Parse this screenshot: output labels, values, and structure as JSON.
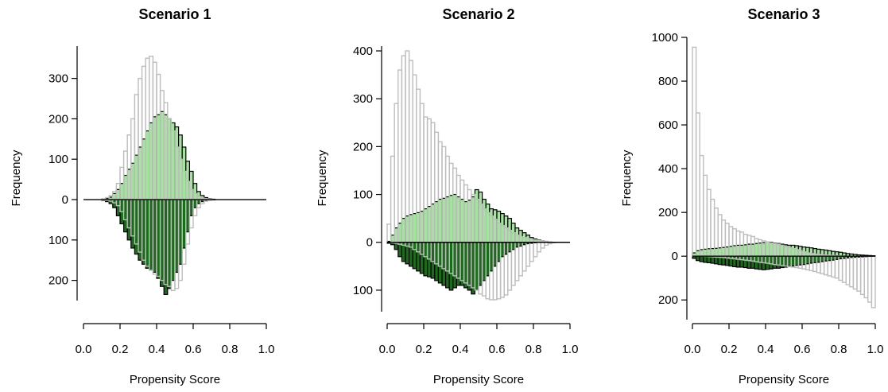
{
  "chart_data": [
    {
      "type": "bar",
      "title": "Scenario 1",
      "xlabel": "Propensity Score",
      "ylabel": "Frequency",
      "bin_width": 0.02,
      "x_range": [
        0.0,
        1.0
      ],
      "xlim": [
        0.0,
        1.0
      ],
      "ylim": [
        -250,
        380
      ],
      "x_ticks": [
        "0.0",
        "0.2",
        "0.4",
        "0.6",
        "0.8",
        "1.0"
      ],
      "y_ticks": [
        {
          "value": 300,
          "label": "300"
        },
        {
          "value": 200,
          "label": "200"
        },
        {
          "value": 100,
          "label": "100"
        },
        {
          "value": 0,
          "label": "0"
        },
        {
          "value": -100,
          "label": "100"
        },
        {
          "value": -200,
          "label": "200"
        }
      ],
      "series": [
        {
          "role": "outline-upper",
          "color": "#bdbdbd",
          "values": [
            0,
            0,
            0,
            0,
            0,
            2,
            5,
            10,
            20,
            40,
            80,
            120,
            160,
            200,
            260,
            300,
            330,
            350,
            355,
            340,
            310,
            270,
            240,
            200,
            170,
            130,
            100,
            70,
            45,
            25,
            15,
            8,
            4,
            2,
            1,
            0,
            0,
            0,
            0,
            0,
            0,
            0,
            0,
            0,
            0,
            0,
            0,
            0,
            0,
            0
          ]
        },
        {
          "role": "treated",
          "color": "#a6e3a1",
          "values": [
            0,
            0,
            0,
            0,
            0,
            1,
            3,
            6,
            15,
            25,
            40,
            60,
            75,
            90,
            110,
            130,
            150,
            170,
            190,
            205,
            210,
            218,
            210,
            200,
            190,
            180,
            160,
            130,
            95,
            70,
            40,
            20,
            10,
            5,
            2,
            1,
            0,
            0,
            0,
            0,
            0,
            0,
            0,
            0,
            0,
            0,
            0,
            0,
            0,
            0
          ]
        },
        {
          "role": "control",
          "color": "#1a6b1a",
          "values": [
            0,
            0,
            0,
            0,
            0,
            2,
            5,
            10,
            20,
            40,
            60,
            80,
            100,
            120,
            135,
            150,
            160,
            170,
            175,
            180,
            195,
            215,
            235,
            220,
            200,
            180,
            160,
            120,
            80,
            40,
            20,
            10,
            5,
            2,
            1,
            0,
            0,
            0,
            0,
            0,
            0,
            0,
            0,
            0,
            0,
            0,
            0,
            0,
            0,
            0
          ]
        },
        {
          "role": "outline-lower",
          "color": "#bdbdbd",
          "values": [
            0,
            0,
            0,
            0,
            0,
            1,
            2,
            4,
            8,
            15,
            30,
            50,
            70,
            90,
            110,
            130,
            150,
            165,
            175,
            185,
            190,
            200,
            210,
            215,
            225,
            220,
            200,
            160,
            110,
            70,
            40,
            20,
            10,
            4,
            2,
            1,
            0,
            0,
            0,
            0,
            0,
            0,
            0,
            0,
            0,
            0,
            0,
            0,
            0,
            0
          ]
        }
      ]
    },
    {
      "type": "bar",
      "title": "Scenario 2",
      "xlabel": "Propensity Score",
      "ylabel": "Frequency",
      "bin_width": 0.02,
      "x_range": [
        0.0,
        1.0
      ],
      "xlim": [
        0.0,
        1.0
      ],
      "ylim": [
        -145,
        410
      ],
      "x_ticks": [
        "0.0",
        "0.2",
        "0.4",
        "0.6",
        "0.8",
        "1.0"
      ],
      "y_ticks": [
        {
          "value": 400,
          "label": "400"
        },
        {
          "value": 300,
          "label": "300"
        },
        {
          "value": 200,
          "label": "200"
        },
        {
          "value": 100,
          "label": "100"
        },
        {
          "value": 0,
          "label": "0"
        },
        {
          "value": -100,
          "label": "100"
        }
      ],
      "series": [
        {
          "role": "outline-upper",
          "color": "#bdbdbd",
          "values": [
            38,
            180,
            290,
            360,
            390,
            400,
            380,
            350,
            320,
            290,
            262,
            258,
            250,
            230,
            210,
            200,
            180,
            165,
            155,
            140,
            130,
            120,
            110,
            100,
            90,
            80,
            70,
            62,
            55,
            48,
            40,
            35,
            30,
            25,
            20,
            15,
            12,
            10,
            8,
            6,
            5,
            4,
            3,
            2,
            1,
            0,
            0,
            0,
            0,
            0
          ]
        },
        {
          "role": "treated",
          "color": "#a6e3a1",
          "values": [
            2,
            15,
            30,
            40,
            50,
            55,
            58,
            60,
            62,
            65,
            70,
            75,
            80,
            85,
            90,
            92,
            95,
            98,
            100,
            95,
            90,
            85,
            88,
            95,
            110,
            105,
            90,
            80,
            70,
            68,
            65,
            60,
            55,
            50,
            40,
            30,
            25,
            20,
            15,
            10,
            7,
            5,
            3,
            2,
            1,
            0,
            0,
            0,
            0,
            0
          ]
        },
        {
          "role": "control",
          "color": "#1a6b1a",
          "values": [
            2,
            5,
            15,
            30,
            40,
            45,
            50,
            55,
            60,
            65,
            70,
            72,
            75,
            80,
            85,
            90,
            95,
            100,
            95,
            90,
            90,
            95,
            100,
            108,
            100,
            90,
            80,
            70,
            60,
            50,
            40,
            30,
            25,
            20,
            15,
            10,
            8,
            5,
            3,
            2,
            1,
            0,
            0,
            0,
            0,
            0,
            0,
            0,
            0,
            0
          ]
        },
        {
          "role": "outline-lower",
          "color": "#bdbdbd",
          "values": [
            0,
            1,
            2,
            4,
            6,
            8,
            10,
            15,
            20,
            25,
            30,
            35,
            40,
            45,
            50,
            55,
            60,
            65,
            70,
            75,
            80,
            85,
            90,
            95,
            100,
            108,
            112,
            118,
            120,
            120,
            118,
            115,
            110,
            100,
            90,
            80,
            70,
            60,
            50,
            40,
            30,
            20,
            12,
            6,
            3,
            1,
            0,
            0,
            0,
            0
          ]
        }
      ]
    },
    {
      "type": "bar",
      "title": "Scenario 3",
      "xlabel": "Propensity Score",
      "ylabel": "Frequency",
      "bin_width": 0.02,
      "x_range": [
        0.0,
        1.0
      ],
      "xlim": [
        0.0,
        1.0
      ],
      "ylim": [
        -290,
        1000
      ],
      "x_ticks": [
        "0.0",
        "0.2",
        "0.4",
        "0.6",
        "0.8",
        "1.0"
      ],
      "y_ticks": [
        {
          "value": 1000,
          "label": "1000"
        },
        {
          "value": 800,
          "label": "800"
        },
        {
          "value": 600,
          "label": "600"
        },
        {
          "value": 400,
          "label": "400"
        },
        {
          "value": 200,
          "label": "200"
        },
        {
          "value": 0,
          "label": "0"
        },
        {
          "value": -200,
          "label": "200"
        }
      ],
      "series": [
        {
          "role": "outline-upper",
          "color": "#bdbdbd",
          "values": [
            955,
            655,
            460,
            370,
            305,
            260,
            220,
            190,
            165,
            150,
            135,
            125,
            115,
            110,
            100,
            95,
            90,
            80,
            75,
            70,
            65,
            60,
            58,
            55,
            50,
            45,
            40,
            35,
            30,
            25,
            20,
            15,
            12,
            10,
            8,
            6,
            5,
            4,
            3,
            2,
            1,
            0,
            0,
            0,
            0,
            0,
            0,
            0,
            0,
            0
          ]
        },
        {
          "role": "treated",
          "color": "#a6e3a1",
          "values": [
            15,
            25,
            30,
            32,
            34,
            35,
            36,
            38,
            40,
            42,
            45,
            48,
            50,
            50,
            52,
            55,
            55,
            58,
            60,
            62,
            65,
            63,
            60,
            58,
            55,
            52,
            50,
            50,
            48,
            45,
            42,
            40,
            38,
            35,
            32,
            30,
            28,
            25,
            22,
            20,
            18,
            15,
            12,
            10,
            8,
            6,
            5,
            4,
            3,
            2
          ]
        },
        {
          "role": "control",
          "color": "#1a6b1a",
          "values": [
            10,
            20,
            25,
            28,
            30,
            32,
            35,
            38,
            40,
            42,
            45,
            48,
            50,
            50,
            52,
            55,
            55,
            58,
            60,
            62,
            60,
            58,
            55,
            55,
            52,
            50,
            48,
            45,
            42,
            40,
            38,
            35,
            32,
            30,
            28,
            25,
            22,
            20,
            18,
            15,
            12,
            10,
            8,
            6,
            5,
            4,
            3,
            2,
            1,
            0
          ]
        },
        {
          "role": "outline-lower",
          "color": "#bdbdbd",
          "values": [
            0,
            0,
            0,
            1,
            2,
            3,
            4,
            5,
            6,
            8,
            10,
            12,
            14,
            16,
            18,
            20,
            22,
            25,
            28,
            30,
            32,
            35,
            38,
            40,
            42,
            45,
            48,
            50,
            52,
            55,
            58,
            62,
            66,
            70,
            75,
            80,
            85,
            90,
            95,
            100,
            110,
            120,
            130,
            140,
            150,
            160,
            175,
            190,
            210,
            235
          ]
        }
      ]
    }
  ]
}
